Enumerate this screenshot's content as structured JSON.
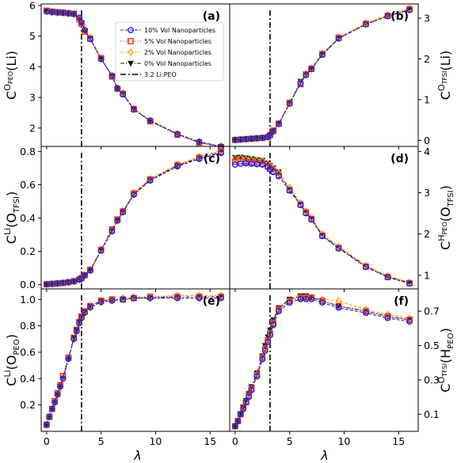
{
  "figure": {
    "xlabel": "λ",
    "legend_entries": [
      {
        "label": "10% Vol Nanoparticles",
        "color": "#1f1fd6",
        "marker": "circle",
        "dash": "dashed"
      },
      {
        "label": "5% Vol Nanoparticles",
        "color": "#e8302c",
        "marker": "square",
        "dash": "dotted"
      },
      {
        "label": "2% Vol Nanoparticles",
        "color": "#f5a623",
        "marker": "diamond",
        "dash": "dashed"
      },
      {
        "label": "0% Vol Nanoparticles",
        "color": "#111111",
        "marker": "triangle-down",
        "dash": "dashdot"
      },
      {
        "label": "3.2 Li:PEO",
        "color": "#000000",
        "marker": "none",
        "dash": "dashdot-vertical"
      }
    ],
    "legend_placement": "top-right of panel (a)"
  },
  "chart_data": [
    {
      "panel": "(a)",
      "type": "line",
      "ylabel": {
        "base": "C",
        "sup": "O",
        "supsub": "PEO",
        "paren": "Li",
        "parensub": ""
      },
      "y_side": "left",
      "xlim": [
        -0.5,
        16.8
      ],
      "ylim": [
        1.4,
        6.05
      ],
      "yticks": [
        "2",
        "3",
        "4",
        "5",
        "6"
      ],
      "xticks": [],
      "vline": 3.2,
      "x": [
        0,
        0.5,
        1,
        1.5,
        2,
        2.5,
        3,
        3.2,
        3.5,
        4,
        5,
        6,
        6.5,
        7,
        8,
        9.5,
        12,
        14,
        16
      ],
      "series": [
        {
          "name": "10% Vol Nanoparticles",
          "values": [
            5.8,
            5.78,
            5.77,
            5.76,
            5.74,
            5.72,
            5.6,
            5.45,
            5.2,
            4.9,
            4.25,
            3.7,
            3.3,
            3.1,
            2.6,
            2.25,
            1.8,
            1.55,
            1.4
          ]
        },
        {
          "name": "5% Vol Nanoparticles",
          "values": [
            5.83,
            5.8,
            5.78,
            5.77,
            5.75,
            5.73,
            5.55,
            5.4,
            5.15,
            4.92,
            4.28,
            3.68,
            3.28,
            3.12,
            2.62,
            2.22,
            1.78,
            1.52,
            1.38
          ]
        },
        {
          "name": "2% Vol Nanoparticles",
          "values": [
            5.82,
            5.79,
            5.77,
            5.76,
            5.74,
            5.72,
            5.58,
            5.42,
            5.18,
            4.95,
            4.27,
            3.72,
            3.3,
            3.14,
            2.63,
            2.24,
            1.82,
            1.55,
            1.4
          ]
        },
        {
          "name": "0% Vol Nanoparticles",
          "values": [
            5.81,
            5.78,
            5.76,
            5.75,
            5.73,
            5.7,
            5.57,
            5.43,
            5.17,
            4.91,
            4.26,
            3.71,
            3.29,
            3.11,
            2.61,
            2.23,
            1.8,
            1.53,
            1.39
          ]
        }
      ]
    },
    {
      "panel": "(b)",
      "type": "line",
      "ylabel": {
        "base": "C",
        "sup": "O",
        "supsub": "TFSI",
        "paren": "Li",
        "parensub": ""
      },
      "y_side": "right",
      "xlim": [
        -0.5,
        16.8
      ],
      "ylim": [
        -0.15,
        3.35
      ],
      "yticks": [
        "0",
        "1",
        "2",
        "3"
      ],
      "xticks": [],
      "vline": 3.2,
      "x": [
        0,
        0.5,
        1,
        1.5,
        2,
        2.5,
        3,
        3.2,
        3.5,
        4,
        5,
        6,
        6.5,
        7,
        8,
        9.5,
        12,
        14,
        16
      ],
      "series": [
        {
          "name": "10% Vol Nanoparticles",
          "values": [
            0.01,
            0.02,
            0.03,
            0.04,
            0.05,
            0.06,
            0.08,
            0.12,
            0.22,
            0.4,
            0.9,
            1.4,
            1.6,
            1.75,
            2.1,
            2.5,
            2.85,
            3.05,
            3.2
          ]
        },
        {
          "name": "5% Vol Nanoparticles",
          "values": [
            0.01,
            0.02,
            0.03,
            0.04,
            0.05,
            0.06,
            0.08,
            0.13,
            0.24,
            0.41,
            0.92,
            1.38,
            1.62,
            1.76,
            2.12,
            2.52,
            2.86,
            3.06,
            3.22
          ]
        },
        {
          "name": "2% Vol Nanoparticles",
          "values": [
            0.01,
            0.02,
            0.03,
            0.04,
            0.05,
            0.06,
            0.09,
            0.13,
            0.23,
            0.42,
            0.93,
            1.41,
            1.63,
            1.77,
            2.14,
            2.53,
            2.88,
            3.08,
            3.24
          ]
        },
        {
          "name": "0% Vol Nanoparticles",
          "values": [
            0.01,
            0.02,
            0.03,
            0.04,
            0.05,
            0.06,
            0.08,
            0.12,
            0.22,
            0.4,
            0.91,
            1.45,
            1.61,
            1.75,
            2.11,
            2.51,
            2.85,
            3.05,
            3.21
          ]
        }
      ]
    },
    {
      "panel": "(c)",
      "type": "line",
      "ylabel": {
        "base": "C",
        "sup": "Li",
        "supsub": "",
        "paren": "O",
        "parensub": "TFSI"
      },
      "y_side": "left",
      "xlim": [
        -0.5,
        16.8
      ],
      "ylim": [
        -0.025,
        0.83
      ],
      "yticks": [
        "0.0",
        "0.2",
        "0.4",
        "0.6",
        "0.8"
      ],
      "xticks": [],
      "vline": 3.2,
      "x": [
        0,
        0.5,
        1,
        1.5,
        2,
        2.5,
        3,
        3.2,
        3.5,
        4,
        5,
        6,
        6.5,
        7,
        8,
        9.5,
        12,
        14,
        16
      ],
      "series": [
        {
          "name": "10% Vol Nanoparticles",
          "values": [
            0.003,
            0.005,
            0.008,
            0.01,
            0.014,
            0.02,
            0.03,
            0.038,
            0.055,
            0.085,
            0.205,
            0.32,
            0.385,
            0.435,
            0.54,
            0.625,
            0.71,
            0.755,
            0.79
          ]
        },
        {
          "name": "5% Vol Nanoparticles",
          "values": [
            0.003,
            0.005,
            0.008,
            0.011,
            0.015,
            0.021,
            0.032,
            0.04,
            0.058,
            0.09,
            0.21,
            0.33,
            0.392,
            0.44,
            0.548,
            0.632,
            0.718,
            0.762,
            0.798
          ]
        },
        {
          "name": "2% Vol Nanoparticles",
          "values": [
            0.003,
            0.005,
            0.008,
            0.011,
            0.015,
            0.021,
            0.031,
            0.04,
            0.057,
            0.088,
            0.212,
            0.325,
            0.39,
            0.442,
            0.552,
            0.635,
            0.722,
            0.768,
            0.805
          ]
        },
        {
          "name": "0% Vol Nanoparticles",
          "values": [
            0.003,
            0.005,
            0.008,
            0.01,
            0.014,
            0.02,
            0.03,
            0.039,
            0.056,
            0.086,
            0.208,
            0.335,
            0.388,
            0.437,
            0.545,
            0.63,
            0.715,
            0.76,
            0.795
          ]
        }
      ]
    },
    {
      "panel": "(d)",
      "type": "line",
      "ylabel": {
        "base": "C",
        "sup": "H",
        "supsub": "PEO",
        "paren": "O",
        "parensub": "TFSI"
      },
      "y_side": "right",
      "xlim": [
        -0.5,
        16.8
      ],
      "ylim": [
        0.67,
        4.12
      ],
      "yticks": [
        "1",
        "2",
        "3",
        "4"
      ],
      "xticks": [],
      "vline": 3.2,
      "x": [
        0,
        0.5,
        1,
        1.5,
        2,
        2.5,
        3,
        3.2,
        3.5,
        4,
        5,
        6,
        6.5,
        7,
        8,
        9.5,
        12,
        14,
        16
      ],
      "series": [
        {
          "name": "10% Vol Nanoparticles",
          "values": [
            3.68,
            3.7,
            3.71,
            3.7,
            3.69,
            3.68,
            3.62,
            3.56,
            3.5,
            3.4,
            3.05,
            2.7,
            2.5,
            2.35,
            1.95,
            1.65,
            1.2,
            0.95,
            0.8
          ]
        },
        {
          "name": "5% Vol Nanoparticles",
          "values": [
            3.75,
            3.76,
            3.74,
            3.73,
            3.72,
            3.7,
            3.64,
            3.58,
            3.52,
            3.42,
            3.06,
            2.71,
            2.52,
            2.36,
            1.96,
            1.66,
            1.21,
            0.96,
            0.81
          ]
        },
        {
          "name": "2% Vol Nanoparticles",
          "values": [
            3.82,
            3.83,
            3.8,
            3.79,
            3.78,
            3.76,
            3.7,
            3.65,
            3.58,
            3.47,
            3.12,
            2.75,
            2.55,
            2.4,
            2.0,
            1.7,
            1.24,
            0.98,
            0.83
          ]
        },
        {
          "name": "0% Vol Nanoparticles",
          "values": [
            3.85,
            3.86,
            3.84,
            3.82,
            3.8,
            3.78,
            3.72,
            3.66,
            3.6,
            3.5,
            3.08,
            2.72,
            2.53,
            2.37,
            1.97,
            1.67,
            1.22,
            0.97,
            0.82
          ]
        }
      ]
    },
    {
      "panel": "(e)",
      "type": "line",
      "ylabel": {
        "base": "C",
        "sup": "Li",
        "supsub": "",
        "paren": "O",
        "parensub": "PEO"
      },
      "y_side": "left",
      "xlim": [
        -0.5,
        16.8
      ],
      "ylim": [
        0.0,
        1.08
      ],
      "yticks": [
        "0.2",
        "0.4",
        "0.6",
        "0.8",
        "1.0"
      ],
      "xticks": [
        "0",
        "5",
        "10",
        "15"
      ],
      "vline": 3.2,
      "x": [
        0,
        0.25,
        0.5,
        0.75,
        1,
        1.25,
        1.5,
        2,
        2.5,
        2.75,
        3,
        3.2,
        3.5,
        4,
        5,
        6,
        7,
        8,
        9.5,
        12,
        14,
        16
      ],
      "series": [
        {
          "name": "10% Vol Nanoparticles",
          "values": [
            0.05,
            0.11,
            0.17,
            0.22,
            0.28,
            0.34,
            0.4,
            0.55,
            0.7,
            0.76,
            0.82,
            0.86,
            0.9,
            0.94,
            0.98,
            0.99,
            1.0,
            1.01,
            1.01,
            1.01,
            1.01,
            1.01
          ]
        },
        {
          "name": "5% Vol Nanoparticles",
          "values": [
            0.05,
            0.11,
            0.17,
            0.23,
            0.29,
            0.35,
            0.42,
            0.56,
            0.71,
            0.77,
            0.83,
            0.87,
            0.91,
            0.95,
            0.99,
            1.0,
            1.0,
            1.01,
            1.02,
            1.02,
            1.02,
            1.02
          ]
        },
        {
          "name": "2% Vol Nanoparticles",
          "values": [
            0.05,
            0.11,
            0.17,
            0.22,
            0.28,
            0.34,
            0.41,
            0.55,
            0.7,
            0.76,
            0.82,
            0.86,
            0.9,
            0.94,
            0.98,
            1.0,
            1.01,
            1.02,
            1.02,
            1.03,
            1.03,
            1.03
          ]
        },
        {
          "name": "0% Vol Nanoparticles",
          "values": [
            0.05,
            0.11,
            0.17,
            0.22,
            0.28,
            0.34,
            0.4,
            0.55,
            0.71,
            0.77,
            0.83,
            0.87,
            0.91,
            0.95,
            0.99,
            1.0,
            1.0,
            1.01,
            1.01,
            1.02,
            1.02,
            1.02
          ]
        }
      ]
    },
    {
      "panel": "(f)",
      "type": "line",
      "ylabel": {
        "base": "C",
        "sup": "O",
        "supsub": "TFSI",
        "paren": "H",
        "parensub": "PEO"
      },
      "y_side": "right",
      "xlim": [
        -0.5,
        16.8
      ],
      "ylim": [
        0.0,
        0.83
      ],
      "yticks": [
        "0.1",
        "0.3",
        "0.5",
        "0.7"
      ],
      "xticks": [
        "0",
        "5",
        "10",
        "15"
      ],
      "vline": 3.2,
      "x": [
        0,
        0.25,
        0.5,
        0.75,
        1,
        1.25,
        1.5,
        2,
        2.5,
        2.75,
        3,
        3.2,
        3.5,
        4,
        5,
        6,
        6.5,
        7,
        8,
        9.5,
        12,
        14,
        16
      ],
      "series": [
        {
          "name": "10% Vol Nanoparticles",
          "values": [
            0.03,
            0.06,
            0.1,
            0.13,
            0.17,
            0.2,
            0.24,
            0.32,
            0.42,
            0.47,
            0.52,
            0.56,
            0.62,
            0.7,
            0.75,
            0.77,
            0.77,
            0.77,
            0.75,
            0.72,
            0.69,
            0.66,
            0.64
          ]
        },
        {
          "name": "5% Vol Nanoparticles",
          "values": [
            0.03,
            0.06,
            0.1,
            0.14,
            0.17,
            0.21,
            0.25,
            0.33,
            0.43,
            0.48,
            0.53,
            0.57,
            0.63,
            0.71,
            0.76,
            0.78,
            0.78,
            0.78,
            0.76,
            0.73,
            0.7,
            0.67,
            0.65
          ]
        },
        {
          "name": "2% Vol Nanoparticles",
          "values": [
            0.03,
            0.06,
            0.1,
            0.13,
            0.17,
            0.2,
            0.24,
            0.33,
            0.43,
            0.48,
            0.53,
            0.57,
            0.63,
            0.71,
            0.76,
            0.78,
            0.78,
            0.78,
            0.77,
            0.76,
            0.71,
            0.68,
            0.66
          ]
        },
        {
          "name": "0% Vol Nanoparticles",
          "values": [
            0.03,
            0.06,
            0.1,
            0.14,
            0.18,
            0.22,
            0.26,
            0.34,
            0.44,
            0.5,
            0.55,
            0.59,
            0.65,
            0.72,
            0.77,
            0.79,
            0.79,
            0.78,
            0.76,
            0.73,
            0.7,
            0.67,
            0.65
          ]
        }
      ]
    }
  ]
}
